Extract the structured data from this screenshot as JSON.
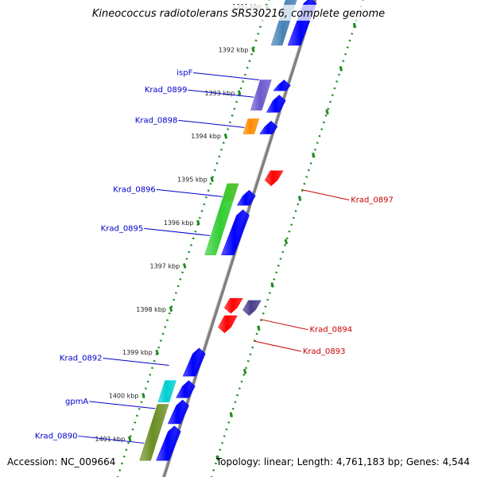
{
  "title": "Kineococcus radiotolerans SRS30216, complete genome",
  "accession_text": "Accession: NC_009664",
  "summary_text": "Topology: linear; Length: 4,761,183 bp; Genes: 4,544",
  "kbp_ticks": [
    {
      "label": "1391 kbp",
      "kbp": 1391
    },
    {
      "label": "1392 kbp",
      "kbp": 1392
    },
    {
      "label": "1393 kbp",
      "kbp": 1393
    },
    {
      "label": "1394 kbp",
      "kbp": 1394
    },
    {
      "label": "1395 kbp",
      "kbp": 1395
    },
    {
      "label": "1396 kbp",
      "kbp": 1396
    },
    {
      "label": "1397 kbp",
      "kbp": 1397
    },
    {
      "label": "1398 kbp",
      "kbp": 1398
    },
    {
      "label": "1399 kbp",
      "kbp": 1399
    },
    {
      "label": "1400 kbp",
      "kbp": 1400
    },
    {
      "label": "1401 kbp",
      "kbp": 1401
    }
  ],
  "gene_labels": [
    {
      "name": "ispF",
      "strand": "forward",
      "color": "#0000cc",
      "kbp": 1392.7
    },
    {
      "name": "Krad_0899",
      "strand": "forward",
      "color": "#0000cc",
      "kbp": 1393.1
    },
    {
      "name": "Krad_0898",
      "strand": "forward",
      "color": "#0000cc",
      "kbp": 1393.8
    },
    {
      "name": "Krad_0896",
      "strand": "forward",
      "color": "#0000cc",
      "kbp": 1395.4
    },
    {
      "name": "Krad_0895",
      "strand": "forward",
      "color": "#0000cc",
      "kbp": 1396.3
    },
    {
      "name": "Krad_0892",
      "strand": "forward",
      "color": "#0000cc",
      "kbp": 1399.3
    },
    {
      "name": "gpmA",
      "strand": "forward",
      "color": "#0000cc",
      "kbp": 1400.3
    },
    {
      "name": "Krad_0890",
      "strand": "forward",
      "color": "#0000cc",
      "kbp": 1401.1
    },
    {
      "name": "Krad_0897",
      "strand": "reverse",
      "color": "#cc0000",
      "kbp": 1395.2
    },
    {
      "name": "Krad_0894",
      "strand": "reverse",
      "color": "#cc0000",
      "kbp": 1398.2
    },
    {
      "name": "Krad_0893",
      "strand": "reverse",
      "color": "#cc0000",
      "kbp": 1398.7
    }
  ],
  "features": [
    {
      "track": "cog-forward",
      "start": 1390.8,
      "end": 1391.9,
      "color": "#4682b4"
    },
    {
      "track": "cds-forward",
      "start": 1390.8,
      "end": 1391.9,
      "color": "#0000ff"
    },
    {
      "track": "cog-forward",
      "start": 1392.7,
      "end": 1393.4,
      "color": "#6a5acd"
    },
    {
      "track": "cds-forward",
      "start": 1392.7,
      "end": 1392.95,
      "color": "#0000ff"
    },
    {
      "track": "cds-forward",
      "start": 1393.05,
      "end": 1393.45,
      "color": "#0000ff"
    },
    {
      "track": "cog-forward",
      "start": 1393.6,
      "end": 1393.95,
      "color": "#ff8c00"
    },
    {
      "track": "cds-forward",
      "start": 1393.65,
      "end": 1393.95,
      "color": "#0000ff"
    },
    {
      "track": "cds-reverse",
      "start": 1394.8,
      "end": 1395.15,
      "color": "#ff0000"
    },
    {
      "track": "cog-forward",
      "start": 1395.1,
      "end": 1395.5,
      "color": "#ff8c00"
    },
    {
      "track": "cog-forward",
      "start": 1395.1,
      "end": 1396.75,
      "color": "#32cd32"
    },
    {
      "track": "cds-forward",
      "start": 1395.25,
      "end": 1395.6,
      "color": "#0000ff"
    },
    {
      "track": "cds-forward",
      "start": 1395.7,
      "end": 1396.75,
      "color": "#0000ff"
    },
    {
      "track": "cds-reverse",
      "start": 1397.75,
      "end": 1398.1,
      "color": "#ff0000"
    },
    {
      "track": "cds-reverse-2",
      "start": 1397.8,
      "end": 1398.15,
      "color": "#483d8b"
    },
    {
      "track": "cds-reverse",
      "start": 1398.15,
      "end": 1398.55,
      "color": "#ff0000"
    },
    {
      "track": "cds-forward",
      "start": 1398.9,
      "end": 1399.55,
      "color": "#0000ff"
    },
    {
      "track": "cds-forward",
      "start": 1399.65,
      "end": 1400.05,
      "color": "#0000ff"
    },
    {
      "track": "cog-forward",
      "start": 1399.65,
      "end": 1400.15,
      "color": "#00ced1"
    },
    {
      "track": "cds-forward",
      "start": 1400.1,
      "end": 1400.65,
      "color": "#0000ff"
    },
    {
      "track": "cog-forward",
      "start": 1400.2,
      "end": 1401.5,
      "color": "#6b8e23"
    },
    {
      "track": "cds-forward",
      "start": 1400.7,
      "end": 1401.5,
      "color": "#0000ff"
    }
  ],
  "colors": {
    "forward_label": "#0000cc",
    "reverse_label": "#cc0000",
    "backbone": "#808080",
    "ruler": "#228b22"
  }
}
